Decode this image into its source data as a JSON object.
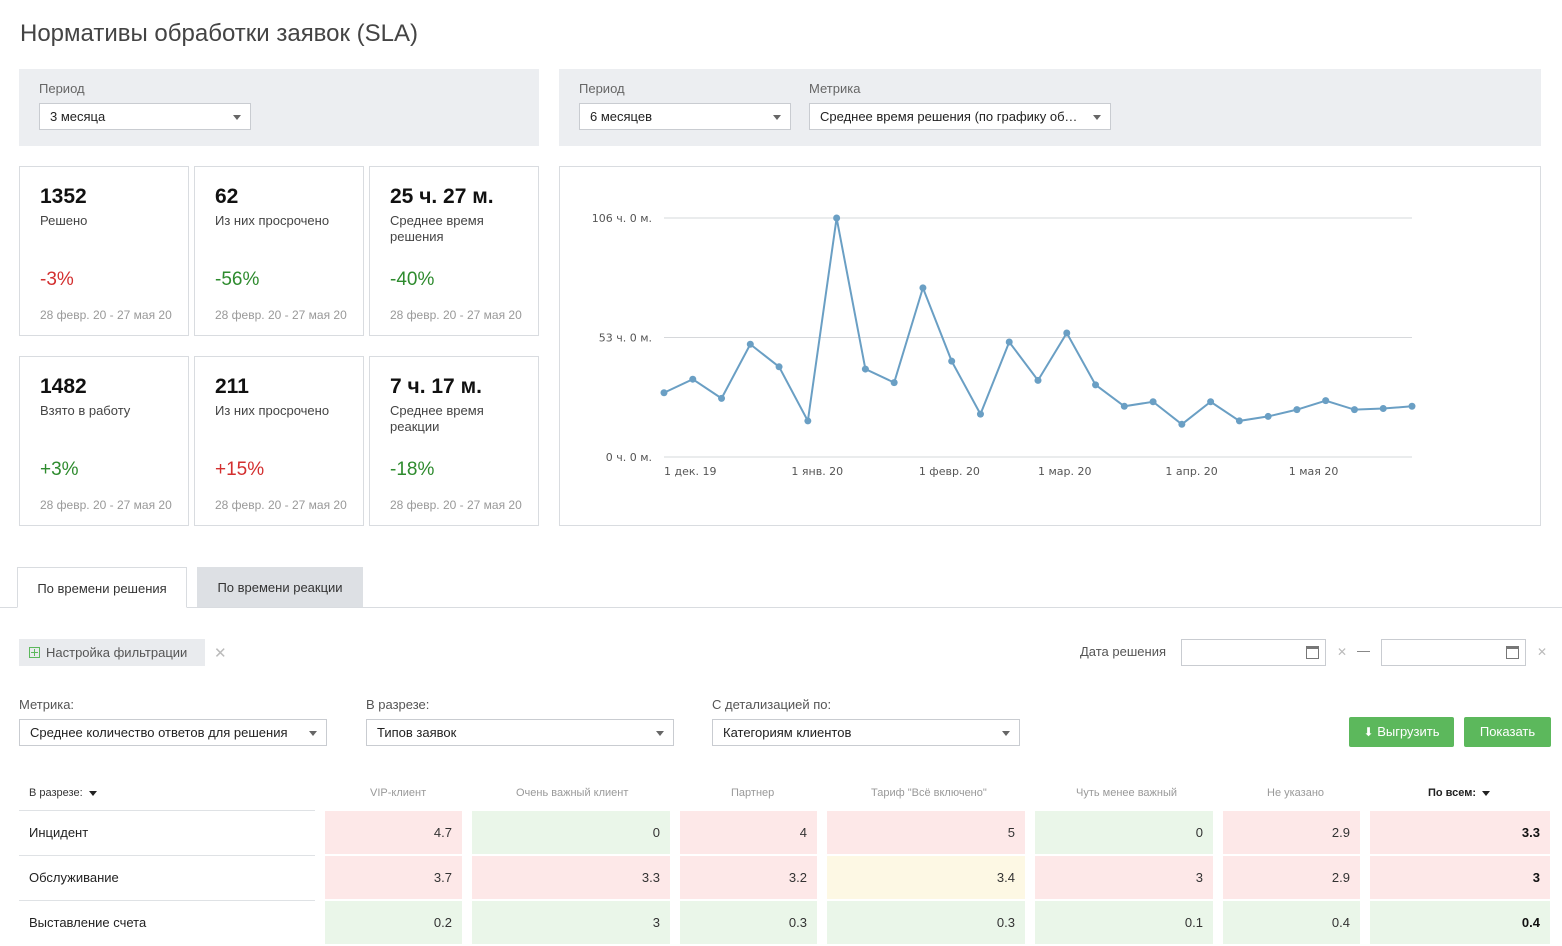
{
  "page": {
    "title": "Нормативы обработки заявок (SLA)"
  },
  "left_filter": {
    "period_label": "Период",
    "period_value": "3 месяца"
  },
  "right_filter": {
    "period_label": "Период",
    "period_value": "6 месяцев",
    "metric_label": "Метрика",
    "metric_value": "Среднее время решения (по графику обслуживания)"
  },
  "stats": [
    {
      "value": "1352",
      "label": "Решено",
      "change": "-3%",
      "trend": "negative",
      "range": "28 февр. 20 - 27 мая 20"
    },
    {
      "value": "62",
      "label": "Из них просрочено",
      "change": "-56%",
      "trend": "positive",
      "range": "28 февр. 20 - 27 мая 20"
    },
    {
      "value": "25 ч. 27 м.",
      "label": "Среднее время решения",
      "change": "-40%",
      "trend": "positive",
      "range": "28 февр. 20 - 27 мая 20"
    },
    {
      "value": "1482",
      "label": "Взято в работу",
      "change": "+3%",
      "trend": "positive",
      "range": "28 февр. 20 - 27 мая 20"
    },
    {
      "value": "211",
      "label": "Из них просрочено",
      "change": "+15%",
      "trend": "negative",
      "range": "28 февр. 20 - 27 мая 20"
    },
    {
      "value": "7 ч. 17 м.",
      "label": "Среднее время реакции",
      "change": "-18%",
      "trend": "positive",
      "range": "28 февр. 20 - 27 мая 20"
    }
  ],
  "chart_data": {
    "type": "line",
    "y_unit": "hours",
    "ylim": [
      0,
      106
    ],
    "y_ticks": [
      0,
      53,
      106
    ],
    "y_tick_labels": [
      "0 ч. 0 м.",
      "53 ч. 0 м.",
      "106 ч. 0 м."
    ],
    "x_tick_labels": [
      "1 дек. 19",
      "1 янв. 20",
      "1 февр. 20",
      "1 мар. 20",
      "1 апр. 20",
      "1 мая 20"
    ],
    "x_tick_dates": [
      "2019-12-01",
      "2020-01-01",
      "2020-02-01",
      "2020-03-01",
      "2020-04-01",
      "2020-05-01"
    ],
    "xlim": [
      "2019-12-01",
      "2020-05-31"
    ],
    "grid": true,
    "color": "#6a9fc4",
    "series": [
      {
        "x": [
          "2019-12-01",
          "2019-12-08",
          "2019-12-15",
          "2019-12-22",
          "2019-12-29",
          "2020-01-05",
          "2020-01-12",
          "2020-01-19",
          "2020-01-26",
          "2020-02-02",
          "2020-02-09",
          "2020-02-16",
          "2020-02-23",
          "2020-03-01",
          "2020-03-08",
          "2020-03-15",
          "2020-03-22",
          "2020-03-29",
          "2020-04-05",
          "2020-04-12",
          "2020-04-19",
          "2020-04-26",
          "2020-05-03",
          "2020-05-10",
          "2020-05-17",
          "2020-05-24",
          "2020-05-31"
        ],
        "y": [
          28.5,
          34.5,
          26,
          50,
          40,
          16,
          106,
          39,
          33,
          75,
          42.5,
          19,
          51,
          34,
          55,
          32,
          22.5,
          24.5,
          14.5,
          24.5,
          16,
          18,
          21,
          25,
          21,
          21.5,
          22.5
        ]
      }
    ]
  },
  "tabs": [
    {
      "label": "По времени решения",
      "active": true
    },
    {
      "label": "По времени реакции",
      "active": false
    }
  ],
  "filters": {
    "setup_label": "Настройка фильтрации",
    "date_label": "Дата решения",
    "date_from": "",
    "date_to": "",
    "dash": "—"
  },
  "report": {
    "metric_label": "Метрика:",
    "metric_value": "Среднее количество ответов для решения",
    "slice_label": "В разрезе:",
    "slice_value": "Типов заявок",
    "detail_label": "С детализацией по:",
    "detail_value": "Категориям клиентов",
    "export_label": "Выгрузить",
    "show_label": "Показать"
  },
  "table": {
    "corner": "В разрезе:",
    "columns": [
      "VIP-клиент",
      "Очень важный клиент",
      "Партнер",
      "Тариф \"Всё включено\"",
      "Чуть менее важный",
      "Не указано",
      "По всем:"
    ],
    "rows": [
      {
        "label": "Инцидент",
        "values": [
          "4.7",
          "0",
          "4",
          "5",
          "0",
          "2.9",
          "3.3"
        ],
        "colors": [
          "red",
          "green",
          "red",
          "red",
          "green",
          "red",
          "red"
        ]
      },
      {
        "label": "Обслуживание",
        "values": [
          "3.7",
          "3.3",
          "3.2",
          "3.4",
          "3",
          "2.9",
          "3"
        ],
        "colors": [
          "red",
          "red",
          "red",
          "yellow",
          "red",
          "red",
          "red"
        ]
      },
      {
        "label": "Выставление счета",
        "values": [
          "0.2",
          "3",
          "0.3",
          "0.3",
          "0.1",
          "0.4",
          "0.4"
        ],
        "colors": [
          "green",
          "green",
          "green",
          "green",
          "green",
          "green",
          "green"
        ]
      }
    ]
  }
}
